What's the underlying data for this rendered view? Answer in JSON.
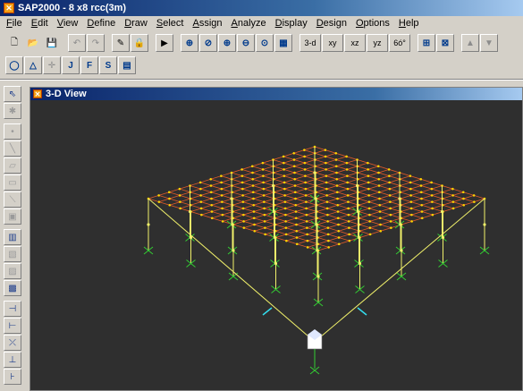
{
  "app": {
    "title": "SAP2000 - 8 x8 rcc(3m)",
    "icon": "sap-app-icon"
  },
  "menu": [
    "File",
    "Edit",
    "View",
    "Define",
    "Draw",
    "Select",
    "Assign",
    "Analyze",
    "Display",
    "Design",
    "Options",
    "Help"
  ],
  "toolbar": {
    "view_3d": "3-d",
    "view_xy": "xy",
    "view_xz": "xz",
    "view_yz": "yz",
    "view_perspective": "6ó°"
  },
  "window": {
    "title": "3-D View",
    "icon": "view-window-icon"
  },
  "model": {
    "grid_divisions": 16,
    "column_lines": 4,
    "colors": {
      "background": "#2f2f2f",
      "slab_mesh": "#e05a2a",
      "joints": "#ffd400",
      "columns": "#f0f06a",
      "supports": "#33cc33",
      "axes": "#ffffff",
      "restraint_arrow": "#33ddee"
    }
  }
}
